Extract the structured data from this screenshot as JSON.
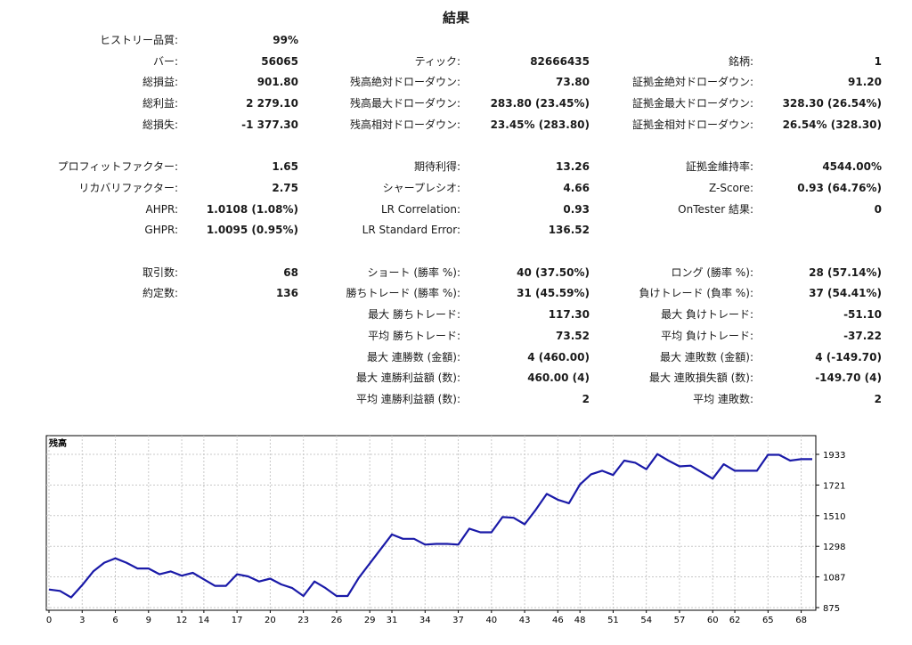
{
  "report": {
    "title": "結果",
    "rows": [
      {
        "c1": [
          "ヒストリー品質:",
          "99%"
        ]
      },
      {
        "c1": [
          "バー:",
          "56065"
        ],
        "c2": [
          "ティック:",
          "82666435"
        ],
        "c3": [
          "銘柄:",
          "1"
        ]
      },
      {
        "c1": [
          "総損益:",
          "901.80"
        ],
        "c2": [
          "残高絶対ドローダウン:",
          "73.80"
        ],
        "c3": [
          "証拠金絶対ドローダウン:",
          "91.20"
        ]
      },
      {
        "c1": [
          "総利益:",
          "2 279.10"
        ],
        "c2": [
          "残高最大ドローダウン:",
          "283.80 (23.45%)"
        ],
        "c3": [
          "証拠金最大ドローダウン:",
          "328.30 (26.54%)"
        ]
      },
      {
        "c1": [
          "総損失:",
          "-1 377.30"
        ],
        "c2": [
          "残高相対ドローダウン:",
          "23.45% (283.80)"
        ],
        "c3": [
          "証拠金相対ドローダウン:",
          "26.54% (328.30)"
        ]
      },
      {},
      {
        "c1": [
          "プロフィットファクター:",
          "1.65"
        ],
        "c2": [
          "期待利得:",
          "13.26"
        ],
        "c3": [
          "証拠金維持率:",
          "4544.00%"
        ]
      },
      {
        "c1": [
          "リカバリファクター:",
          "2.75"
        ],
        "c2": [
          "シャープレシオ:",
          "4.66"
        ],
        "c3": [
          "Z-Score:",
          "0.93 (64.76%)"
        ]
      },
      {
        "c1": [
          "AHPR:",
          "1.0108 (1.08%)"
        ],
        "c2": [
          "LR Correlation:",
          "0.93"
        ],
        "c3": [
          "OnTester 結果:",
          "0"
        ]
      },
      {
        "c1": [
          "GHPR:",
          "1.0095 (0.95%)"
        ],
        "c2": [
          "LR Standard Error:",
          "136.52"
        ]
      },
      {},
      {
        "c1": [
          "取引数:",
          "68"
        ],
        "c2": [
          "ショート (勝率 %):",
          "40 (37.50%)"
        ],
        "c3": [
          "ロング (勝率 %):",
          "28 (57.14%)"
        ]
      },
      {
        "c1": [
          "約定数:",
          "136"
        ],
        "c2": [
          "勝ちトレード (勝率 %):",
          "31 (45.59%)"
        ],
        "c3": [
          "負けトレード (負率 %):",
          "37 (54.41%)"
        ]
      },
      {
        "c2": [
          "最大 勝ちトレード:",
          "117.30"
        ],
        "c3": [
          "最大 負けトレード:",
          "-51.10"
        ]
      },
      {
        "c2": [
          "平均 勝ちトレード:",
          "73.52"
        ],
        "c3": [
          "平均 負けトレード:",
          "-37.22"
        ]
      },
      {
        "c2": [
          "最大 連勝数 (金額):",
          "4 (460.00)"
        ],
        "c3": [
          "最大 連敗数 (金額):",
          "4 (-149.70)"
        ]
      },
      {
        "c2": [
          "最大 連勝利益額 (数):",
          "460.00 (4)"
        ],
        "c3": [
          "最大 連敗損失額 (数):",
          "-149.70 (4)"
        ]
      },
      {
        "c2": [
          "平均 連勝利益額 (数):",
          "2"
        ],
        "c3": [
          "平均 連敗数:",
          "2"
        ]
      }
    ]
  },
  "chart_data": {
    "type": "line",
    "title": "残高",
    "line_color": "#1a1aa8",
    "grid": true,
    "xlim": [
      0,
      69
    ],
    "ylim": [
      875,
      1933
    ],
    "x_ticks": [
      0,
      3,
      6,
      9,
      12,
      14,
      17,
      20,
      23,
      26,
      29,
      31,
      34,
      37,
      40,
      43,
      46,
      48,
      51,
      54,
      57,
      60,
      62,
      65,
      68
    ],
    "y_ticks": [
      875,
      1087,
      1298,
      1510,
      1721,
      1933
    ],
    "series": [
      {
        "x": [
          0,
          1,
          2,
          3,
          4,
          5,
          6,
          7,
          8,
          9,
          10,
          11,
          12,
          13,
          14,
          15,
          16,
          17,
          18,
          19,
          20,
          21,
          22,
          23,
          24,
          25,
          26,
          27,
          28,
          29,
          30,
          31,
          32,
          33,
          34,
          35,
          36,
          37,
          38,
          39,
          40,
          41,
          42,
          43,
          44,
          45,
          46,
          47,
          48,
          49,
          50,
          51,
          52,
          53,
          54,
          55,
          56,
          57,
          58,
          59,
          60,
          61,
          62,
          63,
          64,
          65,
          66,
          67,
          68,
          69
        ],
        "y": [
          1000,
          990,
          945,
          1030,
          1125,
          1185,
          1215,
          1185,
          1145,
          1145,
          1105,
          1125,
          1095,
          1115,
          1070,
          1025,
          1025,
          1105,
          1090,
          1055,
          1075,
          1035,
          1010,
          955,
          1055,
          1010,
          955,
          955,
          1080,
          1180,
          1280,
          1380,
          1350,
          1350,
          1310,
          1315,
          1315,
          1310,
          1420,
          1395,
          1395,
          1500,
          1495,
          1450,
          1550,
          1660,
          1620,
          1595,
          1725,
          1795,
          1820,
          1790,
          1890,
          1875,
          1830,
          1935,
          1890,
          1850,
          1855,
          1810,
          1765,
          1865,
          1820,
          1820,
          1820,
          1930,
          1930,
          1890,
          1900,
          1900
        ]
      }
    ]
  }
}
